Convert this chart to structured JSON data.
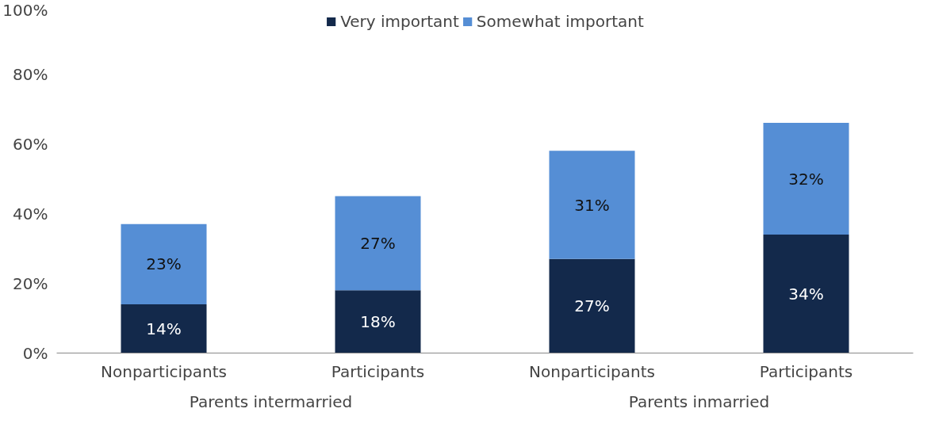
{
  "chart_data": {
    "type": "bar",
    "stacked": true,
    "categories": [
      "Nonparticipants",
      "Participants",
      "Nonparticipants",
      "Participants"
    ],
    "series": [
      {
        "name": "Very important",
        "color": "#13294b",
        "values": [
          14,
          18,
          27,
          34
        ],
        "value_labels": [
          "14%",
          "18%",
          "27%",
          "34%"
        ]
      },
      {
        "name": "Somewhat important",
        "color": "#558ed5",
        "values": [
          23,
          27,
          31,
          32
        ],
        "value_labels": [
          "23%",
          "27%",
          "31%",
          "32%"
        ]
      }
    ],
    "ylim": [
      0,
      100
    ],
    "yticks": [
      {
        "value": 0,
        "label": "0%"
      },
      {
        "value": 20,
        "label": "20%"
      },
      {
        "value": 40,
        "label": "40%"
      },
      {
        "value": 60,
        "label": "60%"
      },
      {
        "value": 80,
        "label": "80%"
      },
      {
        "value": 100,
        "label": "100%"
      }
    ],
    "annotations": [
      "Parents intermarried",
      "Parents inmarried"
    ],
    "legend": "top",
    "grid": false
  }
}
